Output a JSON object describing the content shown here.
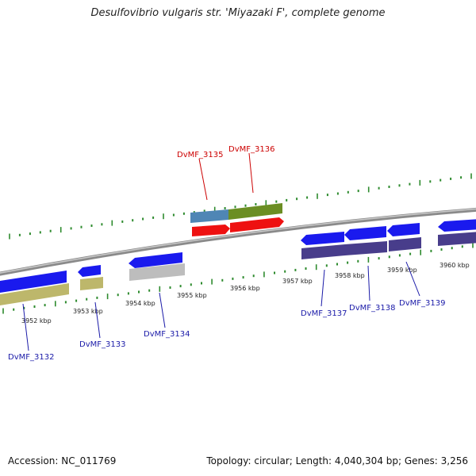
{
  "title": "Desulfovibrio vulgaris str. 'Miyazaki F', complete genome",
  "footer": {
    "accession": "Accession: NC_011769",
    "topology": "Topology: circular; Length: 4,040,304 bp; Genes: 3,256"
  },
  "colors": {
    "backbone": "#8a8a8a",
    "tick": "#2e8b2e",
    "label_forward": "#cc0000",
    "label_reverse": "#1a1aa8",
    "gene_blue": "#1a1aee",
    "gene_red": "#ee1111",
    "band_steelblue": "#4f86b5",
    "band_olive": "#6b8e23",
    "band_khaki": "#bdb76b",
    "band_gray": "#bdbdbd",
    "band_slate": "#483d8b"
  },
  "coordinate_labels": [
    "3952 kbp",
    "3953 kbp",
    "3954 kbp",
    "3955 kbp",
    "3956 kbp",
    "3957 kbp",
    "3958 kbp",
    "3959 kbp",
    "3960 kbp"
  ],
  "genes": [
    {
      "id": "DvMF_3132",
      "strand": "reverse"
    },
    {
      "id": "DvMF_3133",
      "strand": "reverse"
    },
    {
      "id": "DvMF_3134",
      "strand": "reverse"
    },
    {
      "id": "DvMF_3135",
      "strand": "forward"
    },
    {
      "id": "DvMF_3136",
      "strand": "forward"
    },
    {
      "id": "DvMF_3137",
      "strand": "reverse"
    },
    {
      "id": "DvMF_3138",
      "strand": "reverse"
    },
    {
      "id": "DvMF_3139",
      "strand": "reverse"
    }
  ]
}
